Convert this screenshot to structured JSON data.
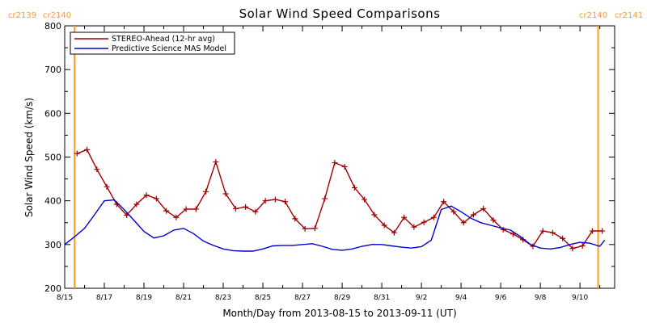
{
  "chart_data": {
    "type": "line",
    "title": "Solar Wind Speed Comparisons",
    "xlabel": "Month/Day from 2013-08-15 to 2013-09-11 (UT)",
    "ylabel": "Solar Wind Speed (km/s)",
    "ylim": [
      200,
      800
    ],
    "yticks": [
      200,
      300,
      400,
      500,
      600,
      700,
      800
    ],
    "xlim": [
      "2013-08-15",
      "2013-09-11"
    ],
    "xticks": [
      {
        "date": "2013-08-15",
        "label": "8/15"
      },
      {
        "date": "2013-08-17",
        "label": "8/17"
      },
      {
        "date": "2013-08-19",
        "label": "8/19"
      },
      {
        "date": "2013-08-21",
        "label": "8/21"
      },
      {
        "date": "2013-08-23",
        "label": "8/23"
      },
      {
        "date": "2013-08-25",
        "label": "8/25"
      },
      {
        "date": "2013-08-27",
        "label": "8/27"
      },
      {
        "date": "2013-08-29",
        "label": "8/29"
      },
      {
        "date": "2013-08-31",
        "label": "8/31"
      },
      {
        "date": "2013-09-02",
        "label": "9/2"
      },
      {
        "date": "2013-09-04",
        "label": "9/4"
      },
      {
        "date": "2013-09-06",
        "label": "9/6"
      },
      {
        "date": "2013-09-08",
        "label": "9/8"
      },
      {
        "date": "2013-09-10",
        "label": "9/10"
      }
    ],
    "grid": false,
    "legend": "top-left",
    "carrington_markers": [
      {
        "date": "2013-08-15 12:00",
        "label_left": "cr2139",
        "label_right": "cr2140",
        "color": "#ff9922"
      },
      {
        "date": "2013-09-10 22:00",
        "label_left": "cr2140",
        "label_right": "cr2141",
        "color": "#ff9922"
      }
    ],
    "series": [
      {
        "name": "STEREO-Ahead (12-hr avg)",
        "color": "#a00000",
        "marker": "plus",
        "x": [
          "2013-08-15 15:00",
          "2013-08-16 03:00",
          "2013-08-16 15:00",
          "2013-08-17 03:00",
          "2013-08-17 15:00",
          "2013-08-18 03:00",
          "2013-08-18 15:00",
          "2013-08-19 03:00",
          "2013-08-19 15:00",
          "2013-08-20 03:00",
          "2013-08-20 15:00",
          "2013-08-21 03:00",
          "2013-08-21 15:00",
          "2013-08-22 03:00",
          "2013-08-22 15:00",
          "2013-08-23 03:00",
          "2013-08-23 15:00",
          "2013-08-24 03:00",
          "2013-08-24 15:00",
          "2013-08-25 03:00",
          "2013-08-25 15:00",
          "2013-08-26 03:00",
          "2013-08-26 15:00",
          "2013-08-27 03:00",
          "2013-08-27 15:00",
          "2013-08-28 03:00",
          "2013-08-28 15:00",
          "2013-08-29 03:00",
          "2013-08-29 15:00",
          "2013-08-30 03:00",
          "2013-08-30 15:00",
          "2013-08-31 03:00",
          "2013-08-31 15:00",
          "2013-09-01 03:00",
          "2013-09-01 15:00",
          "2013-09-02 03:00",
          "2013-09-02 15:00",
          "2013-09-03 03:00",
          "2013-09-03 15:00",
          "2013-09-04 03:00",
          "2013-09-04 15:00",
          "2013-09-05 03:00",
          "2013-09-05 15:00",
          "2013-09-06 03:00",
          "2013-09-06 15:00",
          "2013-09-07 03:00",
          "2013-09-07 15:00",
          "2013-09-08 03:00",
          "2013-09-08 15:00",
          "2013-09-09 03:00",
          "2013-09-09 15:00",
          "2013-09-10 03:00",
          "2013-09-10 15:00",
          "2013-09-11 03:00"
        ],
        "values": [
          508,
          517,
          472,
          432,
          392,
          367,
          392,
          413,
          405,
          377,
          362,
          381,
          381,
          421,
          489,
          416,
          382,
          386,
          375,
          400,
          403,
          398,
          359,
          336,
          337,
          405,
          487,
          478,
          430,
          403,
          368,
          344,
          327,
          362,
          340,
          351,
          362,
          398,
          375,
          350,
          368,
          382,
          356,
          334,
          324,
          311,
          296,
          331,
          327,
          314,
          291,
          297,
          331,
          331
        ]
      },
      {
        "name": "Predictive Science MAS Model",
        "color": "#0000cc",
        "marker": "none",
        "x": [
          "2013-08-15 00:00",
          "2013-08-15 12:00",
          "2013-08-16 00:00",
          "2013-08-16 12:00",
          "2013-08-17 00:00",
          "2013-08-17 12:00",
          "2013-08-18 00:00",
          "2013-08-18 12:00",
          "2013-08-19 00:00",
          "2013-08-19 12:00",
          "2013-08-20 00:00",
          "2013-08-20 12:00",
          "2013-08-21 00:00",
          "2013-08-21 12:00",
          "2013-08-22 00:00",
          "2013-08-22 12:00",
          "2013-08-23 00:00",
          "2013-08-23 12:00",
          "2013-08-24 00:00",
          "2013-08-24 12:00",
          "2013-08-25 00:00",
          "2013-08-25 12:00",
          "2013-08-26 00:00",
          "2013-08-26 12:00",
          "2013-08-27 00:00",
          "2013-08-27 12:00",
          "2013-08-28 00:00",
          "2013-08-28 12:00",
          "2013-08-29 00:00",
          "2013-08-29 12:00",
          "2013-08-30 00:00",
          "2013-08-30 12:00",
          "2013-08-31 00:00",
          "2013-08-31 12:00",
          "2013-09-01 00:00",
          "2013-09-01 12:00",
          "2013-09-02 00:00",
          "2013-09-02 12:00",
          "2013-09-03 00:00",
          "2013-09-03 12:00",
          "2013-09-04 00:00",
          "2013-09-04 12:00",
          "2013-09-05 00:00",
          "2013-09-05 12:00",
          "2013-09-06 00:00",
          "2013-09-06 12:00",
          "2013-09-07 00:00",
          "2013-09-07 12:00",
          "2013-09-08 00:00",
          "2013-09-08 12:00",
          "2013-09-09 00:00",
          "2013-09-09 12:00",
          "2013-09-10 00:00",
          "2013-09-10 12:00",
          "2013-09-11 00:00",
          "2013-09-11 06:00"
        ],
        "values": [
          300,
          318,
          337,
          368,
          400,
          402,
          380,
          355,
          330,
          315,
          320,
          333,
          337,
          325,
          308,
          298,
          290,
          286,
          285,
          285,
          290,
          297,
          298,
          298,
          300,
          302,
          296,
          289,
          287,
          290,
          296,
          300,
          300,
          297,
          294,
          292,
          295,
          310,
          380,
          388,
          375,
          360,
          350,
          344,
          338,
          333,
          318,
          300,
          292,
          290,
          293,
          300,
          305,
          303,
          296,
          310
        ]
      }
    ]
  }
}
